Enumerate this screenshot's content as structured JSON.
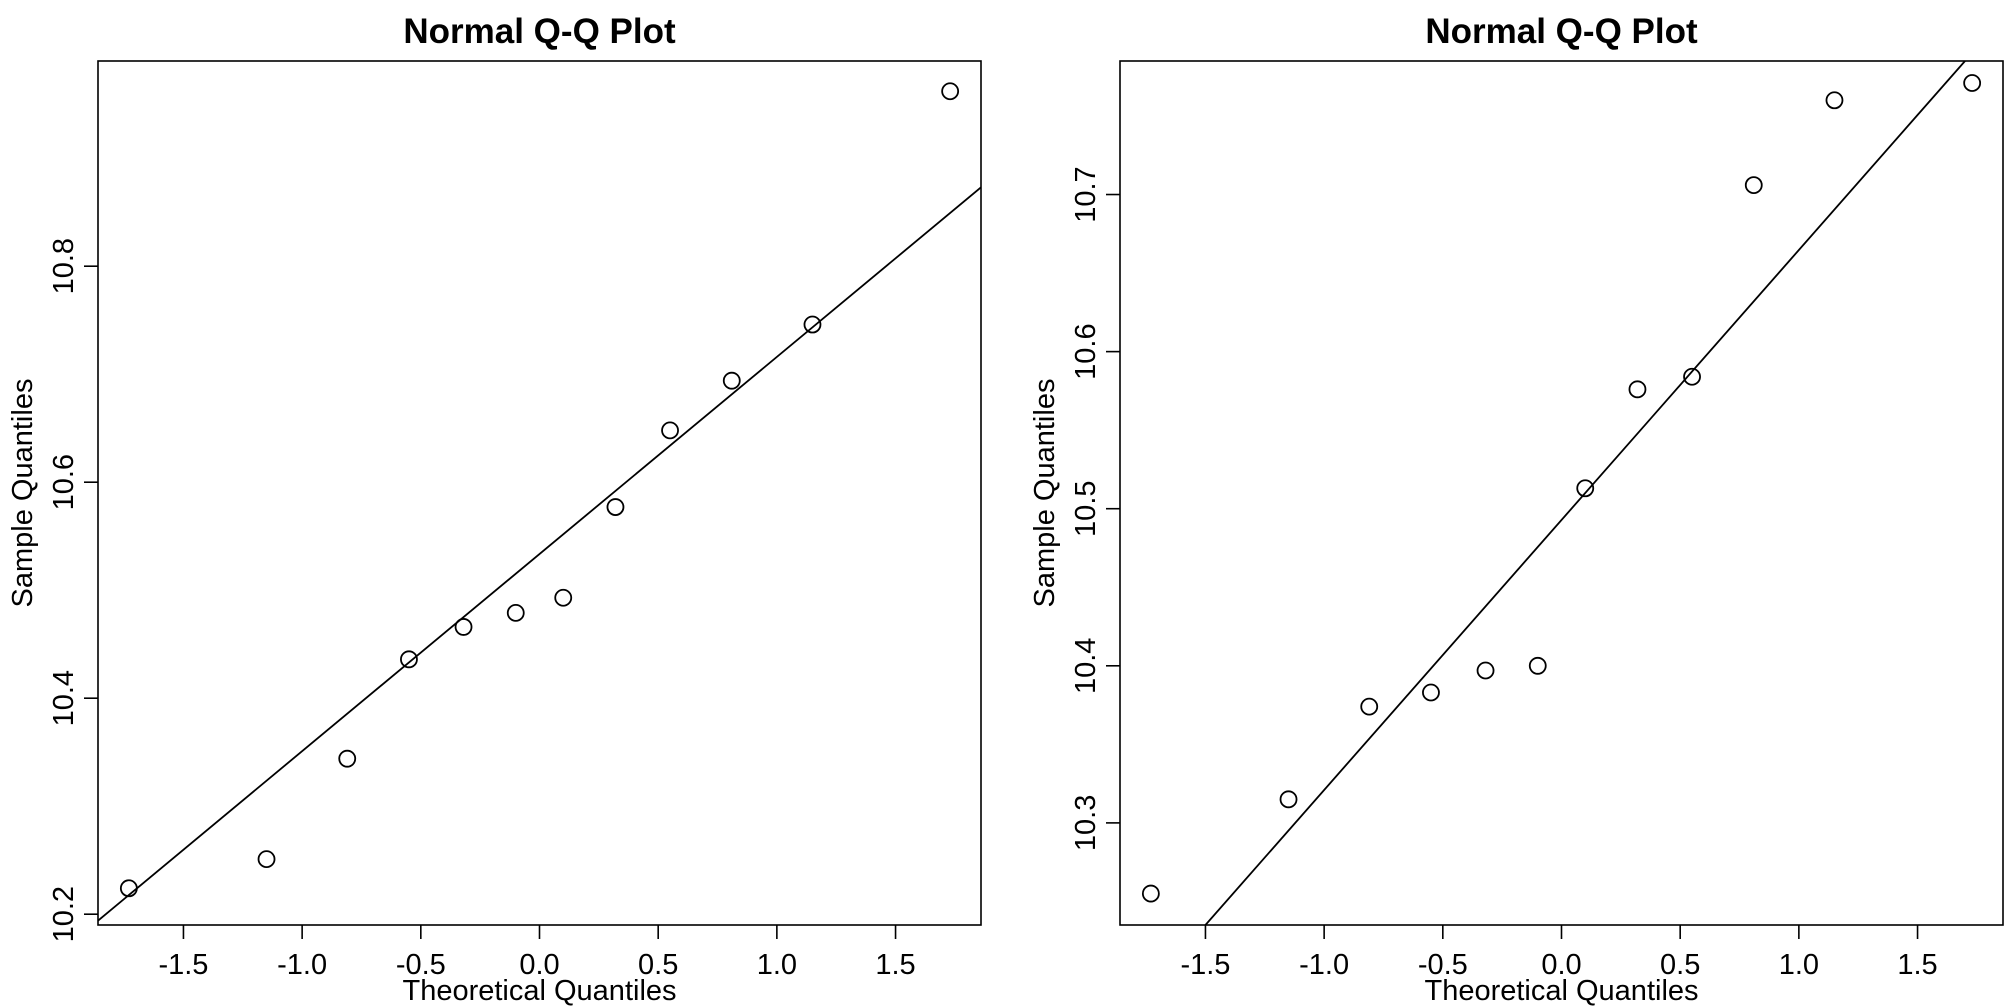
{
  "chart_data": [
    {
      "type": "scatter",
      "title": "Normal Q-Q Plot",
      "xlabel": "Theoretical Quantiles",
      "ylabel": "Sample Quantiles",
      "xlim": [
        -1.86,
        1.86
      ],
      "ylim": [
        10.19,
        10.99
      ],
      "xticks": [
        -1.5,
        -1.0,
        -0.5,
        0.0,
        0.5,
        1.0,
        1.5
      ],
      "xtick_labels": [
        "-1.5",
        "-1.0",
        "-0.5",
        "0.0",
        "0.5",
        "1.0",
        "1.5"
      ],
      "yticks": [
        10.2,
        10.4,
        10.6,
        10.8
      ],
      "ytick_labels": [
        "10.2",
        "10.4",
        "10.6",
        "10.8"
      ],
      "grid": false,
      "legend": "none",
      "points": {
        "x": [
          -1.73,
          -1.15,
          -0.81,
          -0.55,
          -0.32,
          -0.1,
          0.1,
          0.32,
          0.55,
          0.81,
          1.15,
          1.73
        ],
        "y": [
          10.224,
          10.251,
          10.344,
          10.436,
          10.466,
          10.479,
          10.493,
          10.577,
          10.648,
          10.694,
          10.746,
          10.962
        ]
      },
      "reference_line": {
        "x": [
          -1.86,
          1.86
        ],
        "y": [
          10.194,
          10.873
        ]
      }
    },
    {
      "type": "scatter",
      "title": "Normal Q-Q Plot",
      "xlabel": "Theoretical Quantiles",
      "ylabel": "Sample Quantiles",
      "xlim": [
        -1.86,
        1.86
      ],
      "ylim": [
        10.235,
        10.785
      ],
      "xticks": [
        -1.5,
        -1.0,
        -0.5,
        0.0,
        0.5,
        1.0,
        1.5
      ],
      "xtick_labels": [
        "-1.5",
        "-1.0",
        "-0.5",
        "0.0",
        "0.5",
        "1.0",
        "1.5"
      ],
      "yticks": [
        10.3,
        10.4,
        10.5,
        10.6,
        10.7
      ],
      "ytick_labels": [
        "10.3",
        "10.4",
        "10.5",
        "10.6",
        "10.7"
      ],
      "grid": false,
      "legend": "none",
      "points": {
        "x": [
          -1.73,
          -1.15,
          -0.81,
          -0.55,
          -0.32,
          -0.1,
          0.1,
          0.32,
          0.55,
          0.81,
          1.15,
          1.73
        ],
        "y": [
          10.255,
          10.315,
          10.374,
          10.383,
          10.397,
          10.4,
          10.513,
          10.576,
          10.584,
          10.706,
          10.76,
          10.771
        ]
      },
      "reference_line": {
        "x": [
          -1.5,
          1.7
        ],
        "y": [
          10.235,
          10.785
        ]
      }
    }
  ]
}
